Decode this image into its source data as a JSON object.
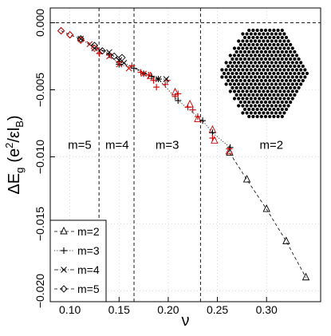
{
  "chart_data": {
    "type": "scatter",
    "xlabel": "ν",
    "ylabel_main": "ΔE",
    "ylabel_sub": "g",
    "ylabel_paren": "(e",
    "ylabel_sup": "2",
    "ylabel_frac": "/εl",
    "ylabel_sub2": "B",
    "ylabel_close": ")",
    "xlim": [
      0.08,
      0.355
    ],
    "ylim": [
      -0.0208,
      0.0011
    ],
    "x_ticks": [
      0.1,
      0.15,
      0.2,
      0.25,
      0.3
    ],
    "x_tick_labels": [
      "0.10",
      "0.15",
      "0.20",
      "0.25",
      "0.30"
    ],
    "y_ticks": [
      0.0,
      -0.005,
      -0.01,
      -0.015,
      -0.02
    ],
    "y_tick_labels": [
      "0.000",
      "−0.005",
      "−0.010",
      "−0.015",
      "−0.020"
    ],
    "zero_line": 0.0,
    "region_boundaries": [
      0.1296,
      0.1652,
      0.2328
    ],
    "regions": [
      {
        "label": "m=5",
        "x": 0.11
      },
      {
        "label": "m=4",
        "x": 0.148
      },
      {
        "label": "m=3",
        "x": 0.199
      },
      {
        "label": "m=2",
        "x": 0.305
      }
    ],
    "legend": {
      "placement": "bottom-left",
      "entries": [
        "m=2",
        "m=3",
        "m=4",
        "m=5"
      ]
    },
    "inset": {
      "shape": "hexagonal lattice",
      "color": "#000000"
    },
    "colors": {
      "black": "#000000",
      "red": "#cc0000",
      "grid": "#bfbfbf"
    },
    "series": [
      {
        "name": "m=2",
        "marker": "triangle",
        "line": "dashed",
        "points_black": [
          [
            0.2625,
            -0.0097
          ],
          [
            0.28,
            -0.0117
          ],
          [
            0.3,
            -0.0139
          ],
          [
            0.32,
            -0.0163
          ],
          [
            0.34,
            -0.019
          ]
        ],
        "points_red": [
          [
            0.182,
            -0.004
          ],
          [
            0.207,
            -0.0052
          ],
          [
            0.222,
            -0.0061
          ],
          [
            0.23,
            -0.0072
          ],
          [
            0.245,
            -0.008
          ],
          [
            0.247,
            -0.0088
          ],
          [
            0.262,
            -0.0096
          ]
        ]
      },
      {
        "name": "m=3",
        "marker": "plus",
        "line": "dotted",
        "points_black": [
          [
            0.14,
            -0.0024
          ],
          [
            0.15,
            -0.0031
          ],
          [
            0.165,
            -0.0034
          ],
          [
            0.175,
            -0.0038
          ],
          [
            0.183,
            -0.004
          ],
          [
            0.19,
            -0.0042
          ],
          [
            0.21,
            -0.0058
          ],
          [
            0.235,
            -0.0073
          ],
          [
            0.245,
            -0.0082
          ],
          [
            0.263,
            -0.0093
          ]
        ],
        "points_red": [
          [
            0.13,
            -0.0023
          ],
          [
            0.15,
            -0.0029
          ],
          [
            0.163,
            -0.0032
          ],
          [
            0.172,
            -0.0037
          ],
          [
            0.18,
            -0.0039
          ],
          [
            0.185,
            -0.0043
          ],
          [
            0.188,
            -0.0048
          ],
          [
            0.197,
            -0.0046
          ],
          [
            0.199,
            -0.0043
          ],
          [
            0.207,
            -0.0055
          ],
          [
            0.21,
            -0.0053
          ],
          [
            0.22,
            -0.0063
          ],
          [
            0.225,
            -0.0065
          ],
          [
            0.23,
            -0.007
          ],
          [
            0.245,
            -0.0086
          ],
          [
            0.262,
            -0.0094
          ]
        ]
      },
      {
        "name": "m=4",
        "marker": "cross",
        "line": "dashdot",
        "points_black": [
          [
            0.111,
            -0.0012
          ],
          [
            0.125,
            -0.0019
          ],
          [
            0.14,
            -0.0022
          ],
          [
            0.15,
            -0.0028
          ],
          [
            0.155,
            -0.003
          ],
          [
            0.19,
            -0.0042
          ],
          [
            0.198,
            -0.0042
          ]
        ],
        "points_red": [
          [
            0.12,
            -0.0016
          ],
          [
            0.13,
            -0.0021
          ],
          [
            0.14,
            -0.0025
          ],
          [
            0.15,
            -0.0031
          ],
          [
            0.16,
            -0.0034
          ],
          [
            0.175,
            -0.0038
          ]
        ]
      },
      {
        "name": "m=5",
        "marker": "diamond",
        "line": "dashed",
        "points_black": [
          [
            0.091,
            -0.0006
          ],
          [
            0.1,
            -0.0009
          ],
          [
            0.111,
            -0.0012
          ],
          [
            0.125,
            -0.0017
          ],
          [
            0.133,
            -0.0021
          ],
          [
            0.145,
            -0.0025
          ],
          [
            0.153,
            -0.0026
          ]
        ],
        "points_red": [
          [
            0.091,
            -0.0006
          ],
          [
            0.1,
            -0.0009
          ],
          [
            0.111,
            -0.0013
          ],
          [
            0.125,
            -0.0019
          ]
        ]
      }
    ]
  }
}
